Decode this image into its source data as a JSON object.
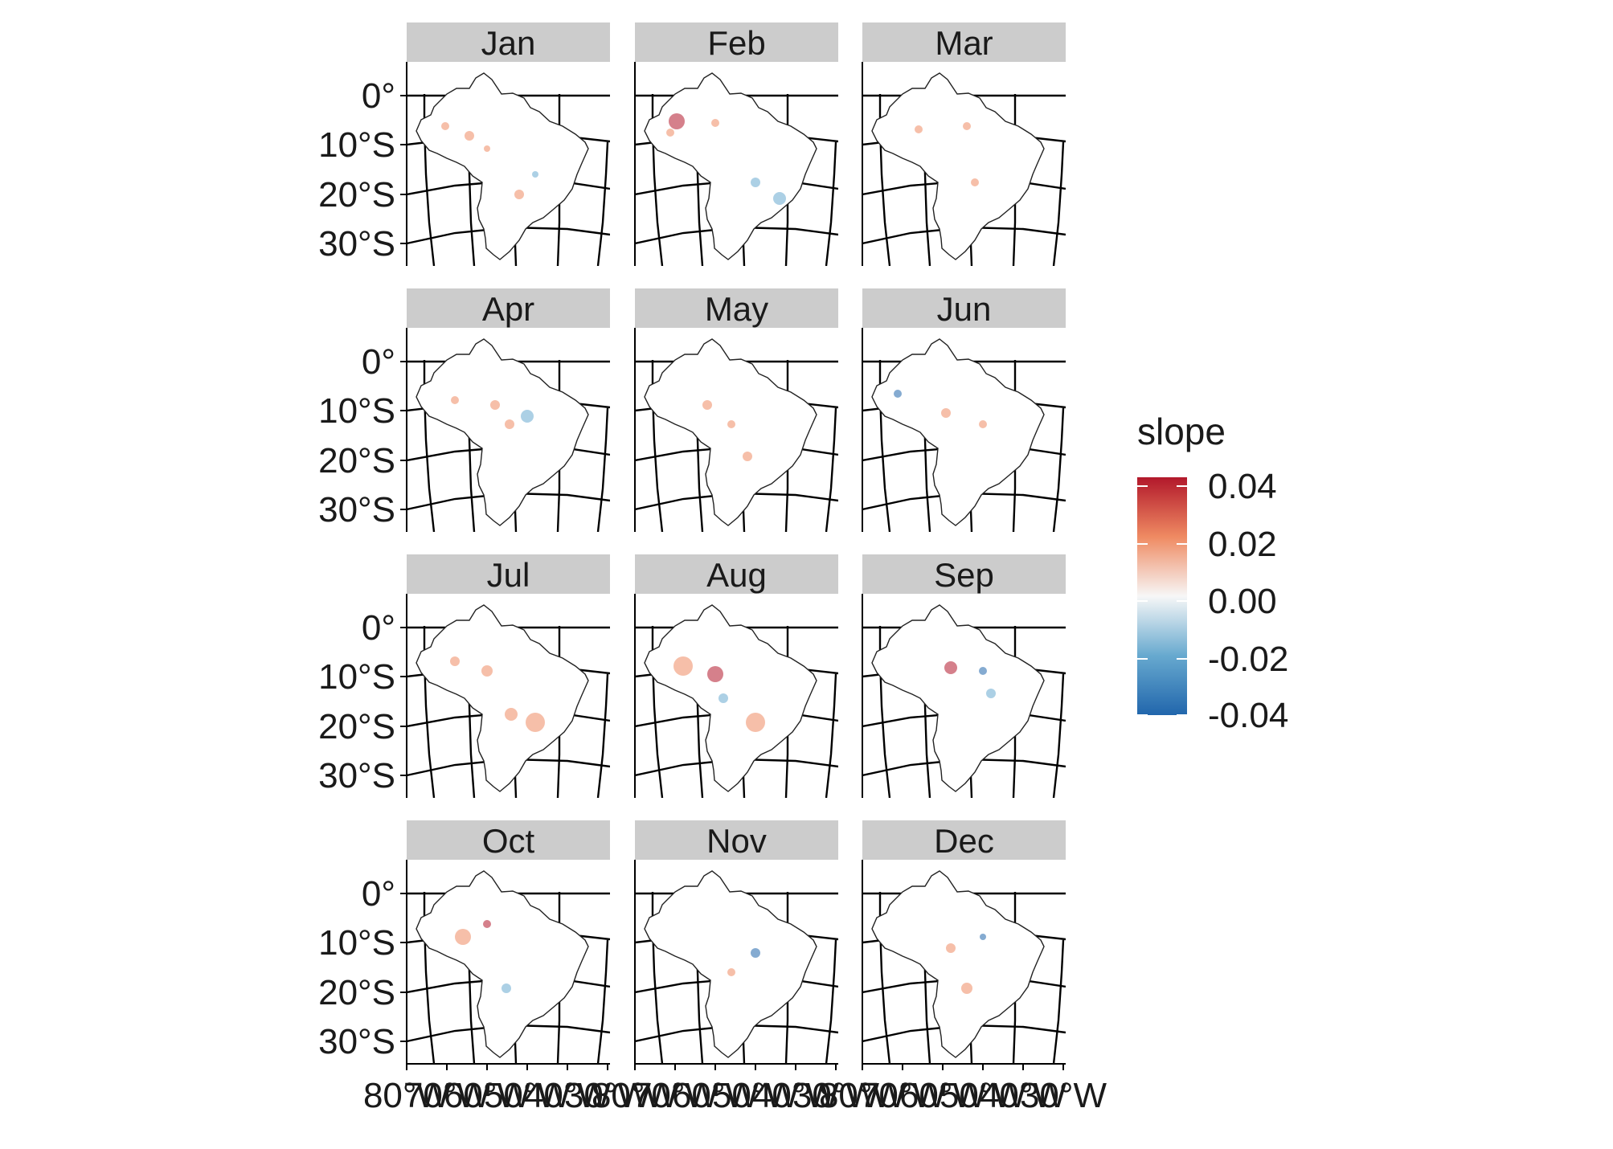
{
  "figure": {
    "panels": [
      {
        "label": "Jan"
      },
      {
        "label": "Feb"
      },
      {
        "label": "Mar"
      },
      {
        "label": "Apr"
      },
      {
        "label": "May"
      },
      {
        "label": "Jun"
      },
      {
        "label": "Jul"
      },
      {
        "label": "Aug"
      },
      {
        "label": "Sep"
      },
      {
        "label": "Oct"
      },
      {
        "label": "Nov"
      },
      {
        "label": "Dec"
      }
    ],
    "y_ticks": [
      "0°",
      "10°S",
      "20°S",
      "30°S"
    ],
    "x_ticks": [
      "80°W",
      "70°W",
      "60°W",
      "50°W",
      "40°W",
      "30°W"
    ],
    "legend": {
      "title": "slope",
      "labels": [
        "0.04",
        "0.02",
        "0.00",
        "-0.02",
        "-0.04"
      ],
      "colors": [
        "#b2182b",
        "#ef8a62",
        "#f7f7f7",
        "#67a9cf",
        "#2166ac"
      ]
    },
    "strip_color": "#cccccc"
  }
}
